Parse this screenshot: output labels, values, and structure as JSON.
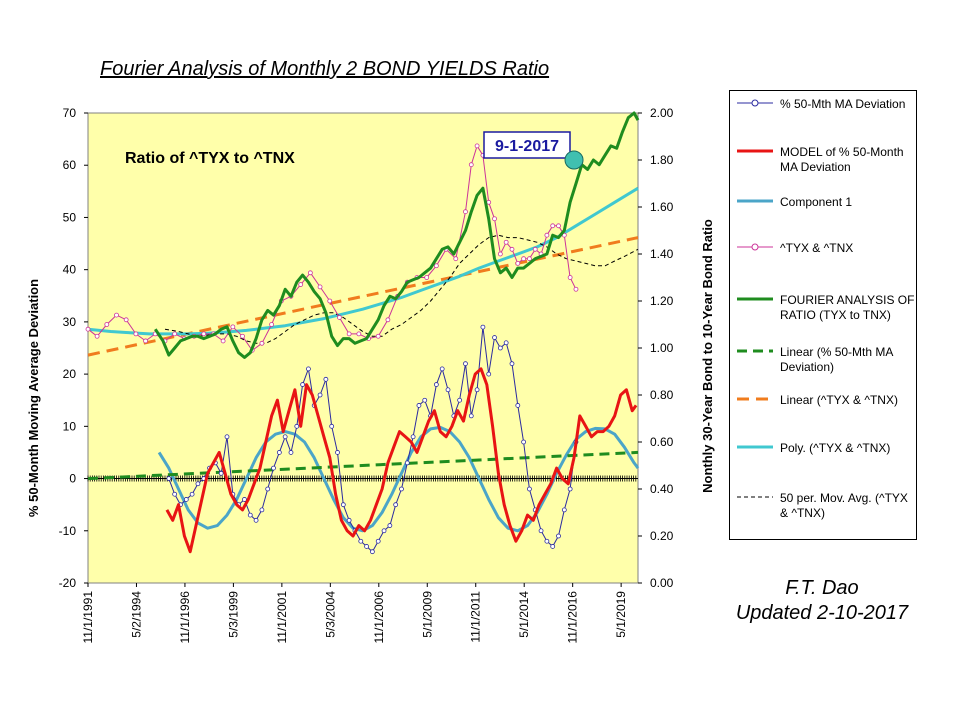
{
  "title": "Fourier Analysis of Monthly 2 BOND YIELDS Ratio",
  "annotation": "Ratio of ^TYX to ^TNX",
  "date_box": "9-1-2017",
  "credit": {
    "line1": "F.T. Dao",
    "line2": "Updated 2-10-2017"
  },
  "colors": {
    "plot_bg": "#FFFFAA",
    "deviation": "#2B2BA0",
    "model": "#E81414",
    "component1": "#4BA5C8",
    "ratio": "#CC3399",
    "fourier": "#1F8C1F",
    "linear_dev": "#1F8C1F",
    "linear_ratio": "#F07C1E",
    "poly": "#40C8D0",
    "mavg": "#000000",
    "marker": "#40C0B0"
  },
  "legend": [
    {
      "key": "deviation",
      "label": "% 50-Mth MA Deviation"
    },
    {
      "key": "model",
      "label": "MODEL of % 50-Month MA Deviation"
    },
    {
      "key": "component1",
      "label": "Component 1"
    },
    {
      "key": "ratio",
      "label": "^TYX & ^TNX"
    },
    {
      "key": "fourier",
      "label": "FOURIER ANALYSIS OF RATIO (TYX to TNX)"
    },
    {
      "key": "linear_dev",
      "label": "Linear (% 50-Mth MA Deviation)"
    },
    {
      "key": "linear_ratio",
      "label": "Linear (^TYX & ^TNX)"
    },
    {
      "key": "poly",
      "label": "Poly. (^TYX & ^TNX)"
    },
    {
      "key": "mavg",
      "label": "50 per. Mov. Avg. (^TYX & ^TNX)"
    }
  ],
  "chart_data": {
    "type": "line",
    "ylabel_left": "% 50-Month  Moving Average Deviation",
    "ylabel_right": "Nonthly 30-Year Bond to 10-Year Bond Ratio",
    "ylim_left": [
      -20,
      70
    ],
    "yticks_left": [
      "70",
      "60",
      "50",
      "40",
      "30",
      "20",
      "10",
      "0",
      "-10",
      "-20"
    ],
    "ylim_right": [
      0.0,
      2.0
    ],
    "yticks_right": [
      "2.00",
      "1.80",
      "1.60",
      "1.40",
      "1.20",
      "1.00",
      "0.80",
      "0.60",
      "0.40",
      "0.20",
      "0.00"
    ],
    "xlim": [
      1991.83,
      2020.2
    ],
    "x_tick_labels": [
      "11/1/1991",
      "5/2/1994",
      "11/1/1996",
      "5/3/1999",
      "11/1/2001",
      "5/3/2004",
      "11/1/2006",
      "5/1/2009",
      "11/1/2011",
      "5/1/2014",
      "11/1/2016",
      "5/1/2019"
    ],
    "x_tick_pos": [
      1991.83,
      1994.33,
      1996.83,
      1999.33,
      2001.83,
      2004.33,
      2006.83,
      2009.33,
      2011.83,
      2014.33,
      2016.83,
      2019.33
    ],
    "series": [
      {
        "name": "% 50-Mth MA Deviation",
        "axis": "left",
        "x": [
          1996.0,
          1996.3,
          1996.6,
          1996.9,
          1997.2,
          1997.5,
          1997.8,
          1998.1,
          1998.4,
          1998.7,
          1999.0,
          1999.3,
          1999.6,
          1999.9,
          2000.2,
          2000.5,
          2000.8,
          2001.1,
          2001.4,
          2001.7,
          2002.0,
          2002.3,
          2002.6,
          2002.9,
          2003.2,
          2003.5,
          2003.8,
          2004.1,
          2004.4,
          2004.7,
          2005.0,
          2005.3,
          2005.6,
          2005.9,
          2006.2,
          2006.5,
          2006.8,
          2007.1,
          2007.4,
          2007.7,
          2008.0,
          2008.3,
          2008.6,
          2008.9,
          2009.2,
          2009.5,
          2009.8,
          2010.1,
          2010.4,
          2010.7,
          2011.0,
          2011.3,
          2011.6,
          2011.9,
          2012.2,
          2012.5,
          2012.8,
          2013.1,
          2013.4,
          2013.7,
          2014.0,
          2014.3,
          2014.6,
          2014.9,
          2015.2,
          2015.5,
          2015.8,
          2016.1,
          2016.4,
          2016.7,
          2017.0
        ],
        "y": [
          0,
          -3,
          -5,
          -4,
          -3,
          -1,
          0,
          2,
          3,
          1,
          8,
          -3,
          -5,
          -4,
          -7,
          -8,
          -6,
          -2,
          2,
          5,
          8,
          5,
          10,
          18,
          21,
          14,
          16,
          19,
          10,
          5,
          -5,
          -8,
          -10,
          -12,
          -13,
          -14,
          -12,
          -10,
          -9,
          -5,
          -2,
          3,
          8,
          14,
          15,
          12,
          18,
          21,
          17,
          12,
          15,
          22,
          12,
          17,
          29,
          20,
          27,
          25,
          26,
          22,
          14,
          7,
          -2,
          -6,
          -10,
          -12,
          -13,
          -11,
          -6,
          -2,
          7
        ]
      },
      {
        "name": "MODEL of % 50-Month MA Deviation",
        "axis": "left",
        "x": [
          1995.9,
          1996.2,
          1996.5,
          1996.8,
          1997.1,
          1997.4,
          1997.7,
          1998.0,
          1998.3,
          1998.6,
          1998.9,
          1999.2,
          1999.5,
          1999.8,
          2000.1,
          2000.4,
          2000.7,
          2001.0,
          2001.3,
          2001.6,
          2001.9,
          2002.2,
          2002.5,
          2002.8,
          2003.1,
          2003.4,
          2003.7,
          2004.0,
          2004.3,
          2004.6,
          2004.9,
          2005.2,
          2005.5,
          2005.8,
          2006.1,
          2006.4,
          2006.7,
          2007.0,
          2007.3,
          2007.6,
          2007.9,
          2008.2,
          2008.5,
          2008.8,
          2009.1,
          2009.4,
          2009.7,
          2010.0,
          2010.3,
          2010.6,
          2010.9,
          2011.2,
          2011.5,
          2011.8,
          2012.1,
          2012.4,
          2012.7,
          2013.0,
          2013.3,
          2013.6,
          2013.9,
          2014.2,
          2014.5,
          2014.8,
          2015.1,
          2015.4,
          2015.7,
          2016.0,
          2016.3,
          2016.6,
          2016.9,
          2017.2,
          2017.5,
          2017.8,
          2018.1,
          2018.4,
          2018.7,
          2019.0,
          2019.3,
          2019.6,
          2019.9,
          2020.1
        ],
        "y": [
          -6,
          -8,
          -5,
          -11,
          -14,
          -9,
          -4,
          1,
          3,
          5,
          1,
          -3,
          -5,
          -6,
          -4,
          -1,
          2,
          7,
          12,
          15,
          9,
          13,
          17,
          10,
          18,
          16,
          12,
          8,
          4,
          -3,
          -8,
          -10,
          -11,
          -9,
          -10,
          -8,
          -5,
          -2,
          3,
          6,
          9,
          8,
          7,
          5,
          8,
          11,
          13,
          9,
          8,
          10,
          13,
          11,
          16,
          20,
          21,
          18,
          10,
          1,
          -5,
          -9,
          -12,
          -10,
          -7,
          -8,
          -5,
          -3,
          -1,
          2,
          0,
          -1,
          4,
          12,
          10,
          8,
          9,
          9,
          10,
          12,
          16,
          17,
          13,
          14
        ]
      },
      {
        "name": "Component 1",
        "axis": "left",
        "x": [
          1995.5,
          1996.0,
          1996.5,
          1997.0,
          1997.5,
          1998.0,
          1998.5,
          1999.0,
          1999.5,
          2000.0,
          2000.5,
          2001.0,
          2001.5,
          2002.0,
          2002.5,
          2003.0,
          2003.5,
          2004.0,
          2004.5,
          2005.0,
          2005.5,
          2006.0,
          2006.5,
          2007.0,
          2007.5,
          2008.0,
          2008.5,
          2009.0,
          2009.5,
          2010.0,
          2010.5,
          2011.0,
          2011.5,
          2012.0,
          2012.5,
          2013.0,
          2013.5,
          2014.0,
          2014.5,
          2015.0,
          2015.5,
          2016.0,
          2016.5,
          2017.0,
          2017.5,
          2018.0,
          2018.5,
          2019.0,
          2019.5,
          2020.0,
          2020.2
        ],
        "y": [
          5,
          2,
          -2,
          -6,
          -8.5,
          -9.5,
          -9,
          -7,
          -4,
          0,
          4,
          7,
          8.5,
          9,
          8.5,
          7,
          4,
          0,
          -4,
          -7.5,
          -9.5,
          -10,
          -9,
          -6.5,
          -3,
          1,
          5,
          8,
          9.5,
          9.8,
          9,
          7,
          4,
          0,
          -4,
          -7.5,
          -9.5,
          -10,
          -9,
          -6.5,
          -3,
          1,
          4.5,
          7.5,
          9,
          9.6,
          9.5,
          8.5,
          6,
          3,
          2
        ]
      },
      {
        "name": "^TYX & ^TNX",
        "axis": "right",
        "x": [
          1991.83,
          1992.3,
          1992.8,
          1993.3,
          1993.8,
          1994.3,
          1994.8,
          1995.3,
          1995.8,
          1996.3,
          1996.8,
          1997.3,
          1997.8,
          1998.3,
          1998.8,
          1999.3,
          1999.8,
          2000.3,
          2000.8,
          2001.3,
          2001.8,
          2002.3,
          2002.8,
          2003.3,
          2003.8,
          2004.3,
          2004.8,
          2005.3,
          2005.8,
          2006.3,
          2006.8,
          2007.3,
          2007.8,
          2008.3,
          2008.8,
          2009.3,
          2009.8,
          2010.3,
          2010.8,
          2011.3,
          2011.6,
          2011.9,
          2012.2,
          2012.5,
          2012.8,
          2013.1,
          2013.4,
          2013.7,
          2014.0,
          2014.3,
          2014.6,
          2014.9,
          2015.2,
          2015.5,
          2015.8,
          2016.1,
          2016.4,
          2016.7,
          2017.0
        ],
        "y": [
          1.08,
          1.05,
          1.1,
          1.14,
          1.12,
          1.06,
          1.03,
          1.06,
          1.03,
          1.06,
          1.04,
          1.05,
          1.06,
          1.06,
          1.03,
          1.09,
          1.05,
          0.99,
          1.02,
          1.1,
          1.2,
          1.22,
          1.27,
          1.32,
          1.26,
          1.2,
          1.13,
          1.06,
          1.06,
          1.04,
          1.05,
          1.12,
          1.22,
          1.28,
          1.3,
          1.3,
          1.35,
          1.42,
          1.38,
          1.58,
          1.78,
          1.86,
          1.82,
          1.62,
          1.55,
          1.4,
          1.45,
          1.42,
          1.36,
          1.38,
          1.38,
          1.42,
          1.4,
          1.48,
          1.52,
          1.52,
          1.48,
          1.3,
          1.25
        ]
      },
      {
        "name": "FOURIER ANALYSIS OF RATIO (TYX to TNX)",
        "axis": "right",
        "x": [
          1995.3,
          1995.7,
          1996.0,
          1996.3,
          1996.6,
          1996.9,
          1997.2,
          1997.5,
          1997.8,
          1998.1,
          1998.4,
          1998.7,
          1999.0,
          1999.3,
          1999.6,
          1999.9,
          2000.2,
          2000.5,
          2000.8,
          2001.1,
          2001.4,
          2001.7,
          2002.0,
          2002.3,
          2002.6,
          2002.9,
          2003.2,
          2003.5,
          2003.8,
          2004.1,
          2004.4,
          2004.7,
          2005.0,
          2005.3,
          2005.6,
          2005.9,
          2006.2,
          2006.5,
          2006.8,
          2007.1,
          2007.4,
          2007.7,
          2008.0,
          2008.3,
          2008.6,
          2008.9,
          2009.2,
          2009.5,
          2009.8,
          2010.1,
          2010.4,
          2010.7,
          2011.0,
          2011.3,
          2011.6,
          2011.9,
          2012.2,
          2012.5,
          2012.8,
          2013.1,
          2013.4,
          2013.7,
          2014.0,
          2014.3,
          2014.6,
          2014.9,
          2015.2,
          2015.5,
          2015.8,
          2016.1,
          2016.4,
          2016.7,
          2017.0,
          2017.3,
          2017.6,
          2017.9,
          2018.2,
          2018.5,
          2018.8,
          2019.1,
          2019.4,
          2019.7,
          2020.0,
          2020.2
        ],
        "y": [
          1.08,
          1.03,
          0.97,
          1.0,
          1.03,
          1.04,
          1.05,
          1.05,
          1.04,
          1.05,
          1.06,
          1.08,
          1.09,
          1.03,
          0.98,
          0.96,
          0.98,
          1.04,
          1.12,
          1.16,
          1.14,
          1.18,
          1.25,
          1.22,
          1.28,
          1.31,
          1.28,
          1.24,
          1.21,
          1.15,
          1.05,
          1.01,
          1.04,
          1.04,
          1.02,
          1.03,
          1.04,
          1.08,
          1.12,
          1.18,
          1.22,
          1.21,
          1.24,
          1.28,
          1.29,
          1.3,
          1.32,
          1.34,
          1.38,
          1.42,
          1.43,
          1.4,
          1.45,
          1.5,
          1.58,
          1.65,
          1.68,
          1.55,
          1.38,
          1.32,
          1.34,
          1.3,
          1.34,
          1.34,
          1.36,
          1.38,
          1.39,
          1.4,
          1.48,
          1.47,
          1.5,
          1.62,
          1.7,
          1.78,
          1.76,
          1.8,
          1.78,
          1.82,
          1.86,
          1.85,
          1.92,
          1.98,
          2.0,
          1.97
        ]
      },
      {
        "name": "Linear (% 50-Mth MA Deviation)",
        "axis": "left",
        "x": [
          1991.83,
          2020.2
        ],
        "y": [
          0,
          5
        ]
      },
      {
        "name": "Linear (^TYX & ^TNX)",
        "axis": "right",
        "x": [
          1991.83,
          2020.2
        ],
        "y": [
          0.97,
          1.47
        ]
      },
      {
        "name": "Poly. (^TYX & ^TNX)",
        "axis": "right",
        "x": [
          1991.83,
          1993.0,
          1994.0,
          1995.0,
          1996.0,
          1997.0,
          1998.0,
          1999.0,
          2000.0,
          2001.0,
          2002.0,
          2003.0,
          2004.0,
          2005.0,
          2006.0,
          2007.0,
          2008.0,
          2009.0,
          2010.0,
          2011.0,
          2012.0,
          2013.0,
          2014.0,
          2015.0,
          2016.0,
          2017.0,
          2018.0,
          2019.0,
          2020.2
        ],
        "y": [
          1.08,
          1.07,
          1.065,
          1.06,
          1.06,
          1.06,
          1.063,
          1.068,
          1.075,
          1.085,
          1.095,
          1.11,
          1.125,
          1.145,
          1.165,
          1.19,
          1.215,
          1.245,
          1.275,
          1.305,
          1.34,
          1.37,
          1.4,
          1.43,
          1.47,
          1.52,
          1.57,
          1.62,
          1.68
        ]
      },
      {
        "name": "50 per. Mov. Avg. (^TYX & ^TNX)",
        "axis": "right",
        "x": [
          1995.8,
          1996.5,
          1997.0,
          1997.5,
          1998.0,
          1998.5,
          1999.0,
          1999.5,
          2000.0,
          2000.5,
          2001.0,
          2001.5,
          2002.0,
          2002.5,
          2003.0,
          2003.5,
          2004.0,
          2004.5,
          2005.0,
          2005.5,
          2006.0,
          2006.5,
          2007.0,
          2007.5,
          2008.0,
          2008.5,
          2009.0,
          2009.5,
          2010.0,
          2010.5,
          2011.0,
          2011.5,
          2012.0,
          2012.5,
          2013.0,
          2013.5,
          2014.0,
          2014.5,
          2015.0,
          2015.5,
          2016.0,
          2016.5,
          2017.0,
          2017.5,
          2018.0,
          2018.5,
          2019.0,
          2019.5,
          2020.2
        ],
        "y": [
          1.08,
          1.07,
          1.06,
          1.05,
          1.055,
          1.06,
          1.06,
          1.05,
          1.03,
          1.02,
          1.02,
          1.04,
          1.07,
          1.1,
          1.12,
          1.14,
          1.15,
          1.15,
          1.13,
          1.1,
          1.07,
          1.05,
          1.05,
          1.08,
          1.1,
          1.13,
          1.16,
          1.2,
          1.25,
          1.3,
          1.36,
          1.4,
          1.44,
          1.47,
          1.48,
          1.47,
          1.47,
          1.46,
          1.45,
          1.43,
          1.4,
          1.38,
          1.37,
          1.36,
          1.35,
          1.35,
          1.37,
          1.39,
          1.42
        ]
      }
    ],
    "marker_point": {
      "x": 2016.9,
      "y_right": 1.8
    }
  }
}
